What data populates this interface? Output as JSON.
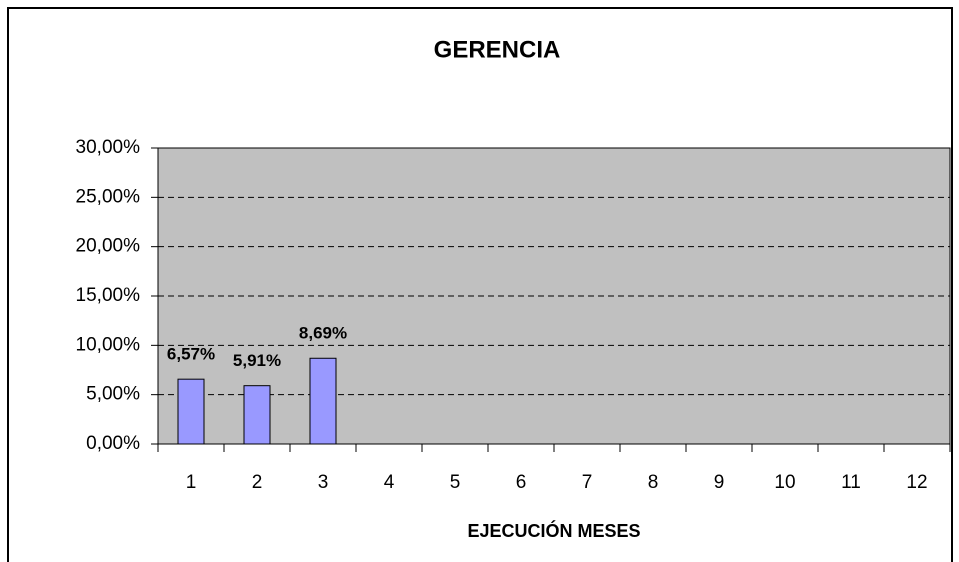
{
  "chart_data": {
    "type": "bar",
    "title": "GERENCIA",
    "x_label": "EJECUCIÓN MESES",
    "categories": [
      "1",
      "2",
      "3",
      "4",
      "5",
      "6",
      "7",
      "8",
      "9",
      "10",
      "11",
      "12"
    ],
    "values": [
      6.57,
      5.91,
      8.69,
      null,
      null,
      null,
      null,
      null,
      null,
      null,
      null,
      null
    ],
    "value_labels": [
      "6,57%",
      "5,91%",
      "8,69%",
      null,
      null,
      null,
      null,
      null,
      null,
      null,
      null,
      null
    ],
    "color": "#9999ff",
    "plot_background": "#c0c0c0",
    "ylim": [
      0,
      30
    ],
    "yticks": [
      {
        "value": 0,
        "label": "0,00%"
      },
      {
        "value": 5,
        "label": "5,00%"
      },
      {
        "value": 10,
        "label": "10,00%"
      },
      {
        "value": 15,
        "label": "15,00%"
      },
      {
        "value": 20,
        "label": "20,00%"
      },
      {
        "value": 25,
        "label": "25,00%"
      },
      {
        "value": 30,
        "label": "30,00%"
      }
    ],
    "grid": true
  }
}
